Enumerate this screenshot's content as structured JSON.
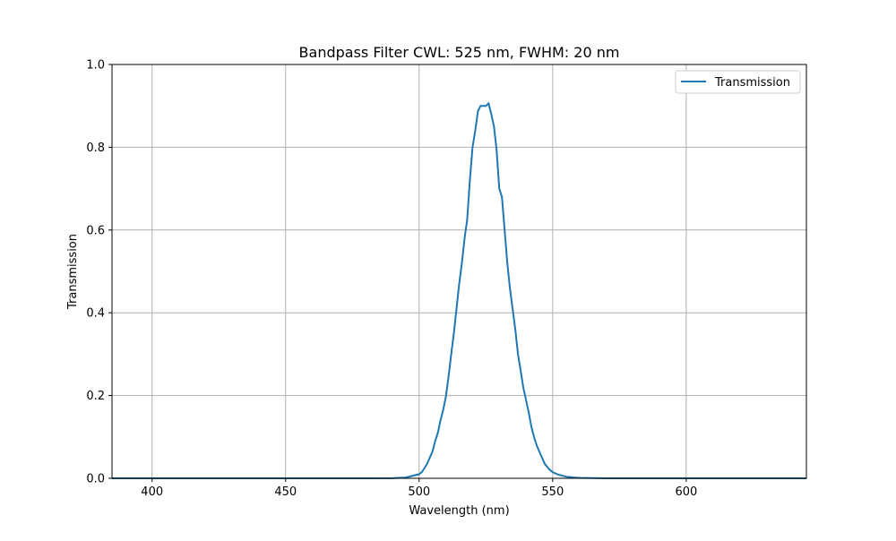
{
  "chart_data": {
    "type": "line",
    "title": "Bandpass Filter CWL: 525 nm, FWHM: 20 nm",
    "xlabel": "Wavelength (nm)",
    "ylabel": "Transmission",
    "xlim": [
      385,
      645
    ],
    "ylim": [
      0,
      1.0
    ],
    "xticks": [
      400,
      450,
      500,
      550,
      600
    ],
    "yticks": [
      0.0,
      0.2,
      0.4,
      0.6,
      0.8,
      1.0
    ],
    "xtick_labels": [
      "400",
      "450",
      "500",
      "550",
      "600"
    ],
    "ytick_labels": [
      "0.0",
      "0.2",
      "0.4",
      "0.6",
      "0.8",
      "1.0"
    ],
    "grid": true,
    "legend": "top-right",
    "series": [
      {
        "name": "Transmission",
        "color": "#1f77b4",
        "x": [
          385,
          480,
          490,
          495,
          500,
          501,
          502,
          503,
          504,
          505,
          506,
          507,
          508,
          509,
          510,
          511,
          512,
          513,
          514,
          515,
          516,
          517,
          518,
          519,
          520,
          521,
          522,
          523,
          524,
          525,
          526,
          527,
          528,
          529,
          530,
          531,
          532,
          533,
          534,
          535,
          536,
          537,
          538,
          539,
          540,
          541,
          542,
          543,
          544,
          545,
          546,
          547,
          548,
          549,
          550,
          552,
          555,
          558,
          560,
          570,
          645
        ],
        "y": [
          0,
          0,
          0.0003,
          0.002,
          0.01,
          0.015,
          0.025,
          0.035,
          0.05,
          0.065,
          0.09,
          0.11,
          0.14,
          0.165,
          0.197,
          0.245,
          0.3,
          0.35,
          0.41,
          0.47,
          0.52,
          0.58,
          0.625,
          0.72,
          0.8,
          0.84,
          0.887,
          0.9,
          0.9,
          0.9,
          0.906,
          0.88,
          0.85,
          0.795,
          0.7,
          0.68,
          0.6,
          0.52,
          0.46,
          0.41,
          0.36,
          0.3,
          0.26,
          0.22,
          0.19,
          0.16,
          0.125,
          0.1,
          0.08,
          0.065,
          0.05,
          0.035,
          0.027,
          0.02,
          0.015,
          0.009,
          0.004,
          0.002,
          0.001,
          0,
          0
        ]
      }
    ]
  }
}
